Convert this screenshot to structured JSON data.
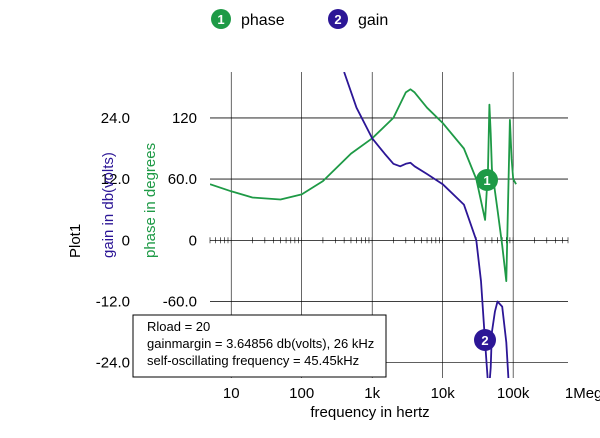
{
  "chart_data": {
    "type": "line",
    "plot_name": "Plot1",
    "xlabel": "frequency in hertz",
    "x_scale": "log",
    "xlim": [
      5,
      600000
    ],
    "x_ticks": [
      {
        "value": 10,
        "label": "10"
      },
      {
        "value": 100,
        "label": "100"
      },
      {
        "value": 1000,
        "label": "1k"
      },
      {
        "value": 10000,
        "label": "10k"
      },
      {
        "value": 100000,
        "label": "100k"
      },
      {
        "value": 1000000,
        "label": "1Meg"
      }
    ],
    "y_axes": [
      {
        "id": "gain",
        "label": "gain in db(volts)",
        "color": "#2c1696",
        "ylim": [
          -27,
          33
        ],
        "ticks": [
          {
            "value": 24,
            "label": "24.0"
          },
          {
            "value": 12,
            "label": "12.0"
          },
          {
            "value": 0,
            "label": "0"
          },
          {
            "value": -12,
            "label": "-12.0"
          },
          {
            "value": -24,
            "label": "-24.0"
          }
        ]
      },
      {
        "id": "phase",
        "label": "phase in degrees",
        "color": "#1e9a46",
        "ylim": [
          -135,
          165
        ],
        "ticks": [
          {
            "value": 120,
            "label": "120"
          },
          {
            "value": 60,
            "label": "60.0"
          },
          {
            "value": 0,
            "label": "0"
          },
          {
            "value": -60,
            "label": "-60.0"
          }
        ]
      }
    ],
    "grid": true,
    "legend_position": "top",
    "series": [
      {
        "name": "phase",
        "marker": "1",
        "axis": "phase",
        "color": "#1e9a46",
        "x": [
          5,
          10,
          20,
          50,
          100,
          200,
          500,
          1000,
          2000,
          3000,
          3500,
          4000,
          6000,
          10000,
          20000,
          30000,
          40000,
          44000,
          46000,
          48000,
          50000,
          60000,
          70000,
          80000,
          90000,
          95000,
          100000,
          110000
        ],
        "y": [
          55,
          48,
          42,
          40,
          45,
          58,
          85,
          100,
          120,
          145,
          148,
          145,
          130,
          115,
          90,
          60,
          20,
          70,
          133,
          105,
          70,
          30,
          -5,
          -40,
          118,
          80,
          60,
          55
        ]
      },
      {
        "name": "gain",
        "marker": "2",
        "axis": "gain",
        "color": "#2c1696",
        "x": [
          400,
          600,
          1000,
          1500,
          2000,
          2500,
          3000,
          3500,
          4000,
          6000,
          10000,
          20000,
          30000,
          35000,
          40000,
          45000,
          48000,
          50000,
          55000,
          60000,
          70000,
          80000,
          90000,
          95000,
          100000
        ],
        "y": [
          33,
          26,
          20,
          17,
          15,
          14.5,
          15,
          15.2,
          14.5,
          13,
          11,
          7,
          0,
          -8,
          -20,
          -30,
          -25,
          -18,
          -14,
          -12,
          -13,
          -20,
          -32,
          -40,
          -40
        ]
      }
    ],
    "annotation_lines": [
      "Rload = 20",
      "gainmargin = 3.64856 db(volts), 26 kHz",
      "self-oscillating frequency = 45.45kHz"
    ]
  }
}
